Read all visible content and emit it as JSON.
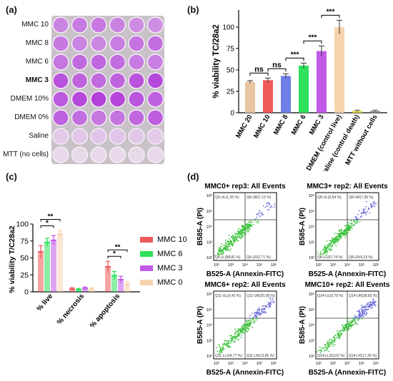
{
  "panels": {
    "a": "(a)",
    "b": "(b)",
    "c": "(c)",
    "d": "(d)"
  },
  "plate": {
    "rows": [
      "MMC 10",
      "MMC 8",
      "MMC 6",
      "MMC 3",
      "DMEM 10%",
      "DMEM 0%",
      "Saline",
      "MTT (no cells)"
    ],
    "bold_row": "MMC 3",
    "intensities": [
      0.55,
      0.6,
      0.65,
      0.8,
      0.85,
      0.7,
      0.15,
      0.05
    ]
  },
  "colors": {
    "mmc20": "#e8c4a0",
    "mmc10": "#ef5a5a",
    "mmc8": "#6f7fe8",
    "mmc6": "#2ee05a",
    "mmc3": "#c25ae8",
    "dmem": "#f7d4ae",
    "saline": "#e2d733",
    "mtt": "#888888"
  },
  "chart_data": [
    {
      "type": "bar",
      "panel": "b",
      "ylabel": "% viability  TC/28a2",
      "ylim": [
        0,
        120
      ],
      "yticks": [
        0,
        25,
        50,
        75,
        100
      ],
      "categories": [
        "MMC 20",
        "MMC 10",
        "MMC 8",
        "MMC 6",
        "MMC 3",
        "DMEM (control live)",
        "Saline (control death)",
        "MTT without cells"
      ],
      "values": [
        36,
        38,
        43,
        55,
        72,
        100,
        2,
        2
      ],
      "errors": [
        1.5,
        2.5,
        2.5,
        3,
        6,
        8,
        1,
        1
      ],
      "annotations": [
        {
          "from": "MMC 20",
          "to": "MMC 10",
          "label": "ns"
        },
        {
          "from": "MMC 10",
          "to": "MMC 8",
          "label": "ns"
        },
        {
          "from": "MMC 8",
          "to": "MMC 6",
          "label": "***"
        },
        {
          "from": "MMC 6",
          "to": "MMC 3",
          "label": "***"
        },
        {
          "from": "MMC 3",
          "to": "DMEM (control live)",
          "label": "***"
        }
      ]
    },
    {
      "type": "bar",
      "panel": "c",
      "ylabel": "% viability T/C28a2",
      "ylim": [
        0,
        100
      ],
      "yticks": [
        0,
        25,
        50,
        75,
        100
      ],
      "categories": [
        "% live",
        "% necrosis",
        "% apoptosis"
      ],
      "series": [
        {
          "name": "MMC 10",
          "values": [
            59,
            4,
            37
          ],
          "errors": [
            9,
            2,
            8
          ]
        },
        {
          "name": "MMC 6",
          "values": [
            73,
            3,
            24
          ],
          "errors": [
            6,
            2,
            6
          ]
        },
        {
          "name": "MMC 3",
          "values": [
            76,
            5,
            18
          ],
          "errors": [
            7,
            2,
            5
          ]
        },
        {
          "name": "MMC 0",
          "values": [
            85,
            4,
            11
          ],
          "errors": [
            5,
            2,
            4
          ]
        }
      ],
      "annotations": [
        {
          "category": "% live",
          "from": "MMC 10",
          "to": "MMC 3",
          "label": "*"
        },
        {
          "category": "% live",
          "from": "MMC 10",
          "to": "MMC 0",
          "label": "**"
        },
        {
          "category": "% apoptosis",
          "from": "MMC 10",
          "to": "MMC 3",
          "label": "*"
        },
        {
          "category": "% apoptosis",
          "from": "MMC 10",
          "to": "MMC 0",
          "label": "**"
        }
      ]
    },
    {
      "type": "scatter",
      "panel": "d",
      "xlabel": "B525-A (Annexin-FITC)",
      "ylabel": "B585-A (PI)",
      "axis_scale": "log",
      "xticks": [
        "10²",
        "10³",
        "10⁴",
        "10⁵",
        "10⁶"
      ],
      "yticks": [
        "10²",
        "10³",
        "10⁴",
        "10⁵",
        "10⁶"
      ],
      "plots": [
        {
          "title": "MMC0+ rep3: All Events",
          "UL": "Q6-UL(1,35 %)",
          "UR": "Q6-UR(7,13 %)",
          "LL": "Q6-LL(88,81 %)",
          "LR": "Q6-LR(2,71 %)"
        },
        {
          "title": "MMC3+ rep2: All Events",
          "UL": "Q8-UL(0,54 %)",
          "UR": "Q8-UR(7,39 %)",
          "LL": "Q8-LL(87,74 %)",
          "LR": "Q8-LR(4,33 %)"
        },
        {
          "title": "MMC6+ rep2: All Events",
          "UL": "Q11-UL(0,41 %)",
          "UR": "Q11-UR(20,98 %)",
          "LL": "Q11-LL(64,77 %)",
          "LR": "Q11-LR(13,85 %)"
        },
        {
          "title": "MMC10+ rep2: All Events",
          "UL": "Q14-UL(0,79 %)",
          "UR": "Q14-UR(28,83 %)",
          "LL": "Q14-LL(53,02 %)",
          "LR": "Q14-LR(17,35 %)"
        }
      ]
    }
  ]
}
